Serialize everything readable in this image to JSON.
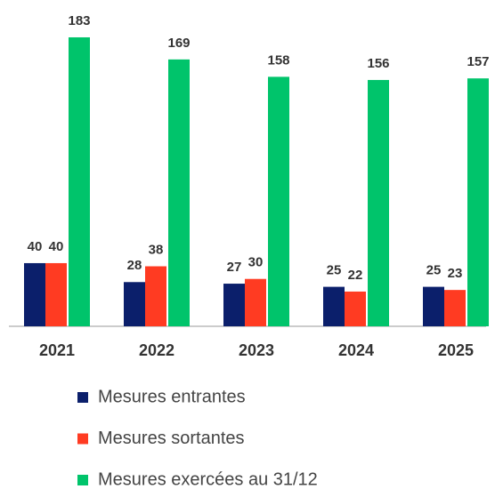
{
  "chart_data": {
    "type": "bar",
    "categories": [
      "2021",
      "2022",
      "2023",
      "2024",
      "2025"
    ],
    "series": [
      {
        "name": "Mesures entrantes",
        "color": "#0b1f6b",
        "values": [
          40,
          28,
          27,
          25,
          25
        ]
      },
      {
        "name": "Mesures sortantes",
        "color": "#ff3b22",
        "values": [
          40,
          38,
          30,
          22,
          23
        ]
      },
      {
        "name": "Mesures exercées au 31/12",
        "color": "#00c46b",
        "values": [
          183,
          169,
          158,
          156,
          157
        ]
      }
    ],
    "legend": "bottom"
  }
}
